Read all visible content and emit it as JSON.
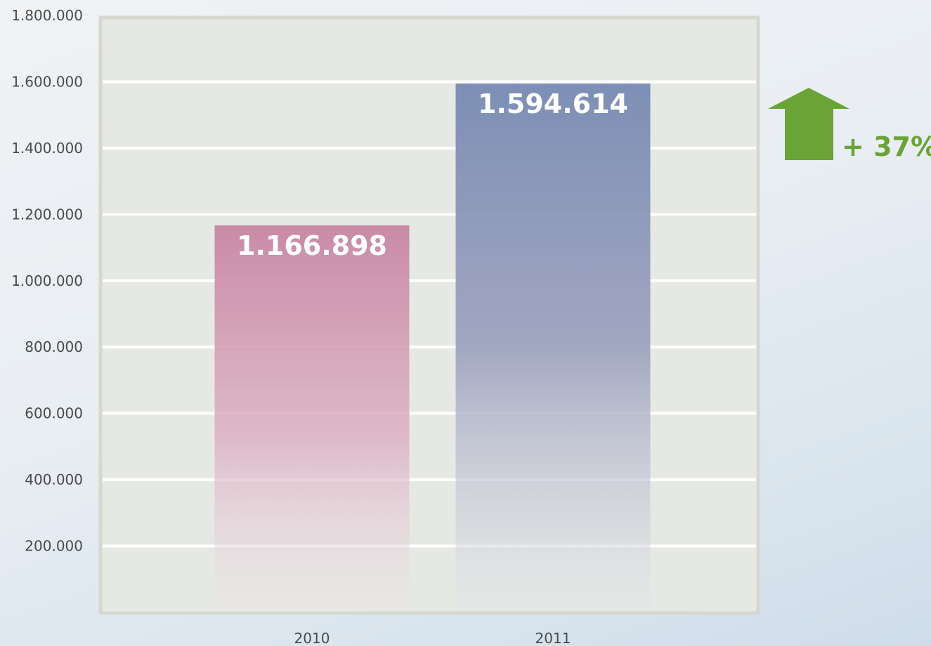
{
  "chart_data": {
    "type": "bar",
    "title": "",
    "xlabel": "",
    "ylabel": "",
    "categories": [
      "2010",
      "2011"
    ],
    "values": [
      1166898,
      1594614
    ],
    "value_labels": [
      "1.166.898",
      "1.594.614"
    ],
    "ylim": [
      0,
      1800000
    ],
    "yticks": [
      200000,
      400000,
      600000,
      800000,
      1000000,
      1200000,
      1400000,
      1600000,
      1800000
    ],
    "ytick_labels": [
      "200.000",
      "400.000",
      "600.000",
      "800.000",
      "1.000.000",
      "1.200.000",
      "1.400.000",
      "1.600.000",
      "1.800.000"
    ],
    "grid": true,
    "colors": [
      "#c98aa6",
      "#7d8fb5"
    ],
    "annotation": {
      "text": "+ 37%",
      "icon": "up-arrow-icon",
      "color": "#6aa336"
    }
  }
}
